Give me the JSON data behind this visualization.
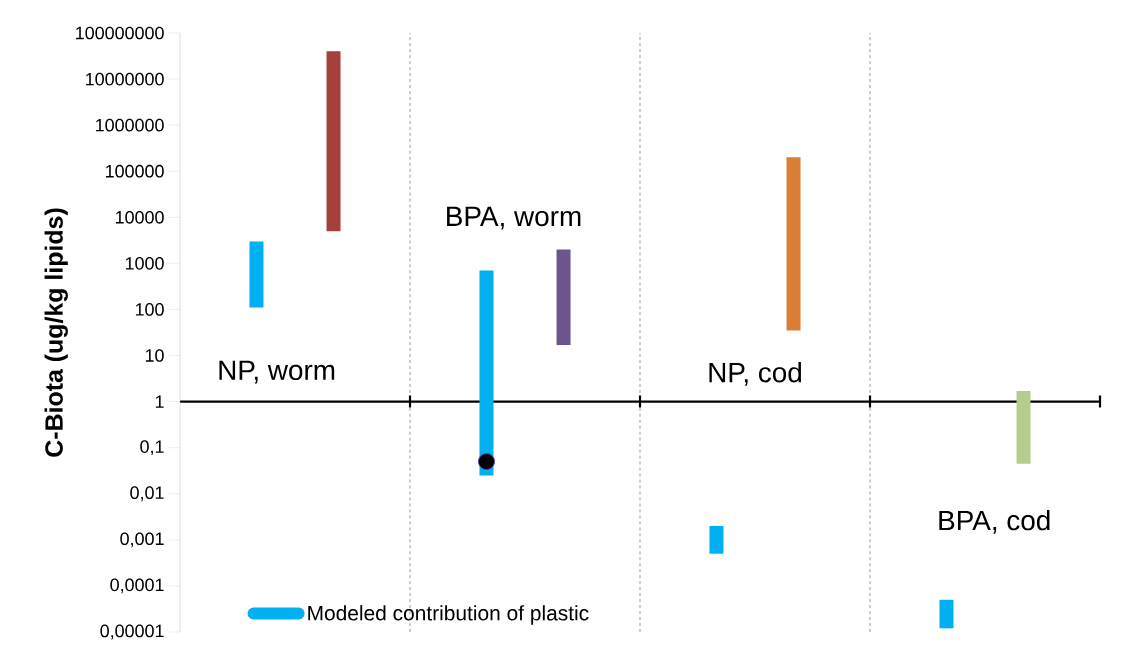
{
  "chart_data": {
    "type": "bar",
    "ylabel": "C-Biota (ug/kg lipids)",
    "categories": [
      "NP, worm",
      "BPA, worm",
      "NP, cod",
      "BPA, cod"
    ],
    "series": [
      {
        "name": "Modeled contribution of plastic",
        "color": "#00b0f0",
        "base": [
          110,
          0.025,
          0.0005,
          1.2e-05
        ],
        "values": [
          2890,
          699.975,
          0.0015,
          3.8e-05
        ]
      },
      {
        "colors": [
          "#a5413c",
          "#6c548d",
          "#d97f35",
          "#b5cc8e"
        ],
        "base": [
          5000,
          17,
          35,
          0.045
        ],
        "values": [
          39995000,
          1983,
          199965,
          1.655
        ]
      },
      {
        "type": "scatter",
        "color": "#000000",
        "marker": "circle",
        "x": [
          "BPA, worm"
        ],
        "values": [
          0.05
        ]
      }
    ],
    "log": true,
    "ylim": [
      1e-05,
      100000000
    ],
    "yticks": [
      {
        "value": 1e-05,
        "label": "0,00001"
      },
      {
        "value": 0.0001,
        "label": "0,0001"
      },
      {
        "value": 0.001,
        "label": "0,001"
      },
      {
        "value": 0.01,
        "label": "0,01"
      },
      {
        "value": 0.1,
        "label": "0,1"
      },
      1,
      10,
      100,
      1000,
      10000,
      100000,
      1000000,
      10000000,
      100000000
    ],
    "legend": "bottom"
  }
}
